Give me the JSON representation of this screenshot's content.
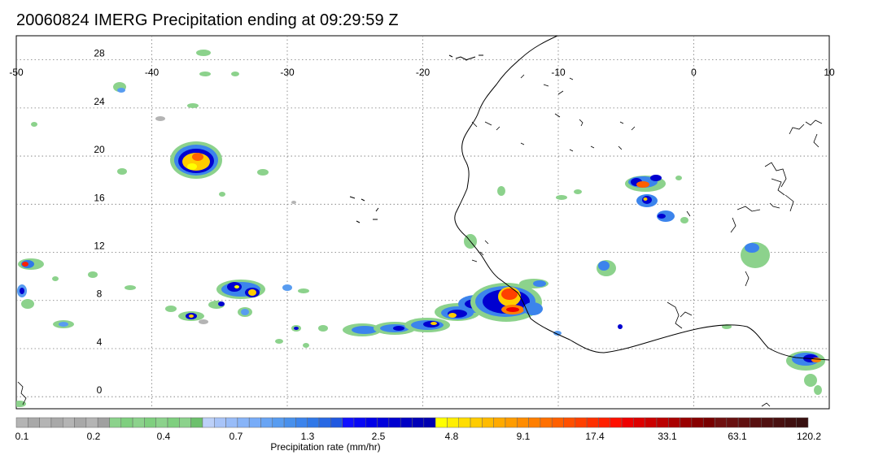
{
  "title": "20060824 IMERG Precipitation ending at 09:29:59 Z",
  "map": {
    "lon_range": [
      -50,
      10
    ],
    "lat_range": [
      -1,
      30
    ],
    "lon_ticks": [
      "-50",
      "-40",
      "-30",
      "-20",
      "-10",
      "0",
      "10"
    ],
    "lat_ticks": [
      "28",
      "24",
      "20",
      "16",
      "12",
      "8",
      "4",
      "0"
    ],
    "grid": "dotted",
    "coastline_color": "#000000"
  },
  "colorbar": {
    "title": "Precipitation rate (mm/hr)",
    "tick_labels": [
      "0.1",
      "0.2",
      "0.4",
      "0.7",
      "1.3",
      "2.5",
      "4.8",
      "9.1",
      "17.4",
      "33.1",
      "63.1",
      "120.2"
    ],
    "colors": [
      "#b4b4b4",
      "#a8a8a8",
      "#b4b4b4",
      "#a8a8a8",
      "#b4b4b4",
      "#a8a8a8",
      "#b4b4b4",
      "#a0a0a0",
      "#8cd28c",
      "#7fcf7f",
      "#8cd28c",
      "#7fcf7f",
      "#8cd28c",
      "#7fcf7f",
      "#8cd28c",
      "#6cc06c",
      "#bcd0f8",
      "#a8c4f8",
      "#98bcf8",
      "#88b4f8",
      "#78acf8",
      "#68a4f4",
      "#589cf0",
      "#4890ec",
      "#3c84ec",
      "#3078e8",
      "#2868e4",
      "#2058e0",
      "#1010ff",
      "#0808f4",
      "#0000e8",
      "#0000dc",
      "#0000d0",
      "#0000c4",
      "#0000b8",
      "#0000b0",
      "#ffff00",
      "#ffee00",
      "#ffdd00",
      "#ffcc00",
      "#ffbb00",
      "#ffaa00",
      "#ff9c00",
      "#ff8c00",
      "#ff7f00",
      "#ff7000",
      "#ff6000",
      "#ff5000",
      "#ff4000",
      "#ff3000",
      "#ff2000",
      "#ff1000",
      "#ee0000",
      "#dd0000",
      "#cc0000",
      "#bb0000",
      "#aa0000",
      "#990000",
      "#880000",
      "#780000",
      "#701010",
      "#681010",
      "#601010",
      "#581010",
      "#501010",
      "#481010",
      "#401010",
      "#381010"
    ]
  },
  "precip_cells": [
    {
      "lon": -38.5,
      "lat": 20.3,
      "level": "heavy"
    },
    {
      "lon": -45.8,
      "lat": 9.4,
      "level": "light"
    },
    {
      "lon": -49.2,
      "lat": 11.9,
      "level": "moderate"
    },
    {
      "lon": -33.5,
      "lat": 9.5,
      "level": "moderate"
    },
    {
      "lon": -36.8,
      "lat": 7.4,
      "level": "light"
    },
    {
      "lon": -31.0,
      "lat": 9.8,
      "level": "light"
    },
    {
      "lon": -18.8,
      "lat": 6.5,
      "level": "moderate"
    },
    {
      "lon": -13.4,
      "lat": 7.8,
      "level": "heavy"
    },
    {
      "lon": -11.5,
      "lat": 8.6,
      "level": "heavy"
    },
    {
      "lon": -3.2,
      "lat": 18.4,
      "level": "moderate"
    },
    {
      "lon": -2.8,
      "lat": 16.6,
      "level": "moderate"
    },
    {
      "lon": 8.6,
      "lat": 3.8,
      "level": "moderate"
    },
    {
      "lon": 4.9,
      "lat": 12.2,
      "level": "light"
    },
    {
      "lon": -6.4,
      "lat": 11.4,
      "level": "light"
    },
    {
      "lon": -45.0,
      "lat": 26.3,
      "level": "light"
    }
  ]
}
